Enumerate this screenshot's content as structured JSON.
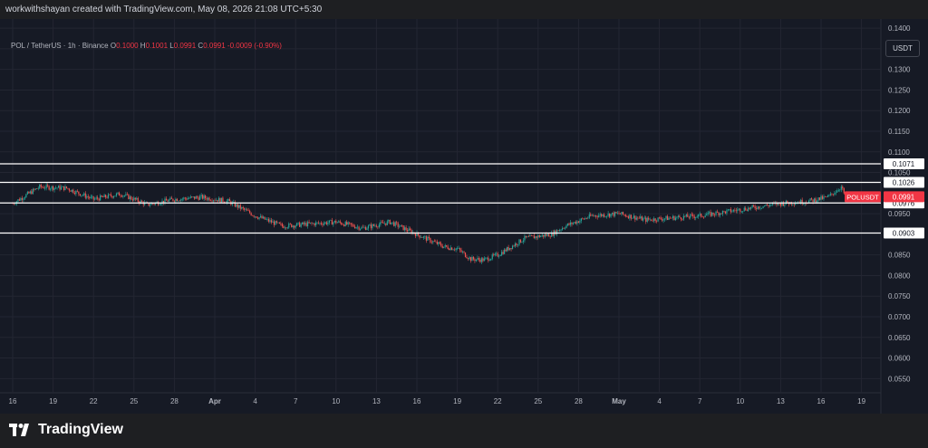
{
  "header": {
    "caption": "workwithshayan created with TradingView.com, May 08, 2026 21:08 UTC+5:30"
  },
  "legend": {
    "symbol": "POL / TetherUS · 1h · Binance",
    "open_label": "O",
    "open": "0.1000",
    "high_label": "H",
    "high": "0.1001",
    "low_label": "L",
    "low": "0.0991",
    "close_label": "C",
    "close": "0.0991",
    "change": "-0.0009 (-0.90%)"
  },
  "price_axis": {
    "unit": "USDT"
  },
  "brand": {
    "name": "TradingView"
  },
  "colors": {
    "up": "#26a69a",
    "down": "#ef5350",
    "background": "#161a25",
    "grid": "#232632",
    "level_line": "#ffffff",
    "last_price": "#f23645"
  },
  "chart_data": {
    "type": "candlestick",
    "symbol": "POLUSDT",
    "ylim": [
      0.052,
      0.142
    ],
    "y_ticks": [
      "0.1400",
      "0.1350",
      "0.1300",
      "0.1250",
      "0.1200",
      "0.1150",
      "0.1100",
      "0.1050",
      "0.0950",
      "0.0850",
      "0.0800",
      "0.0750",
      "0.0700",
      "0.0650",
      "0.0600",
      "0.0550"
    ],
    "x_ticks": [
      "16",
      "19",
      "22",
      "25",
      "28",
      "Apr",
      "4",
      "7",
      "10",
      "13",
      "16",
      "19",
      "22",
      "25",
      "28",
      "May",
      "4",
      "7",
      "10",
      "13",
      "16",
      "19"
    ],
    "price_path": [
      [
        0,
        0.0975
      ],
      [
        2,
        0.1015
      ],
      [
        4,
        0.1012
      ],
      [
        6,
        0.0985
      ],
      [
        8,
        0.0998
      ],
      [
        10,
        0.0972
      ],
      [
        12,
        0.0985
      ],
      [
        14,
        0.099
      ],
      [
        16,
        0.098
      ],
      [
        18,
        0.0945
      ],
      [
        20,
        0.092
      ],
      [
        22,
        0.0925
      ],
      [
        24,
        0.093
      ],
      [
        26,
        0.0915
      ],
      [
        28,
        0.093
      ],
      [
        30,
        0.09
      ],
      [
        32,
        0.087
      ],
      [
        33,
        0.0865
      ],
      [
        34,
        0.084
      ],
      [
        35,
        0.0838
      ],
      [
        36,
        0.085
      ],
      [
        38,
        0.089
      ],
      [
        40,
        0.09
      ],
      [
        41,
        0.092
      ],
      [
        43,
        0.0945
      ],
      [
        45,
        0.095
      ],
      [
        47,
        0.0935
      ],
      [
        49,
        0.094
      ],
      [
        51,
        0.0945
      ],
      [
        53,
        0.0955
      ],
      [
        55,
        0.0965
      ],
      [
        57,
        0.0975
      ],
      [
        59,
        0.098
      ],
      [
        60.5,
        0.099
      ],
      [
        61.5,
        0.1015
      ],
      [
        61.8,
        0.0991
      ]
    ],
    "levels": [
      {
        "price": 0.1071,
        "label": "0.1071"
      },
      {
        "price": 0.1026,
        "label": "0.1026"
      },
      {
        "price": 0.0976,
        "label": "0.0976"
      },
      {
        "price": 0.0903,
        "label": "0.0903"
      }
    ],
    "last_price": {
      "symbol": "POLUSDT",
      "price": 0.0991,
      "label": "0.0991"
    }
  }
}
